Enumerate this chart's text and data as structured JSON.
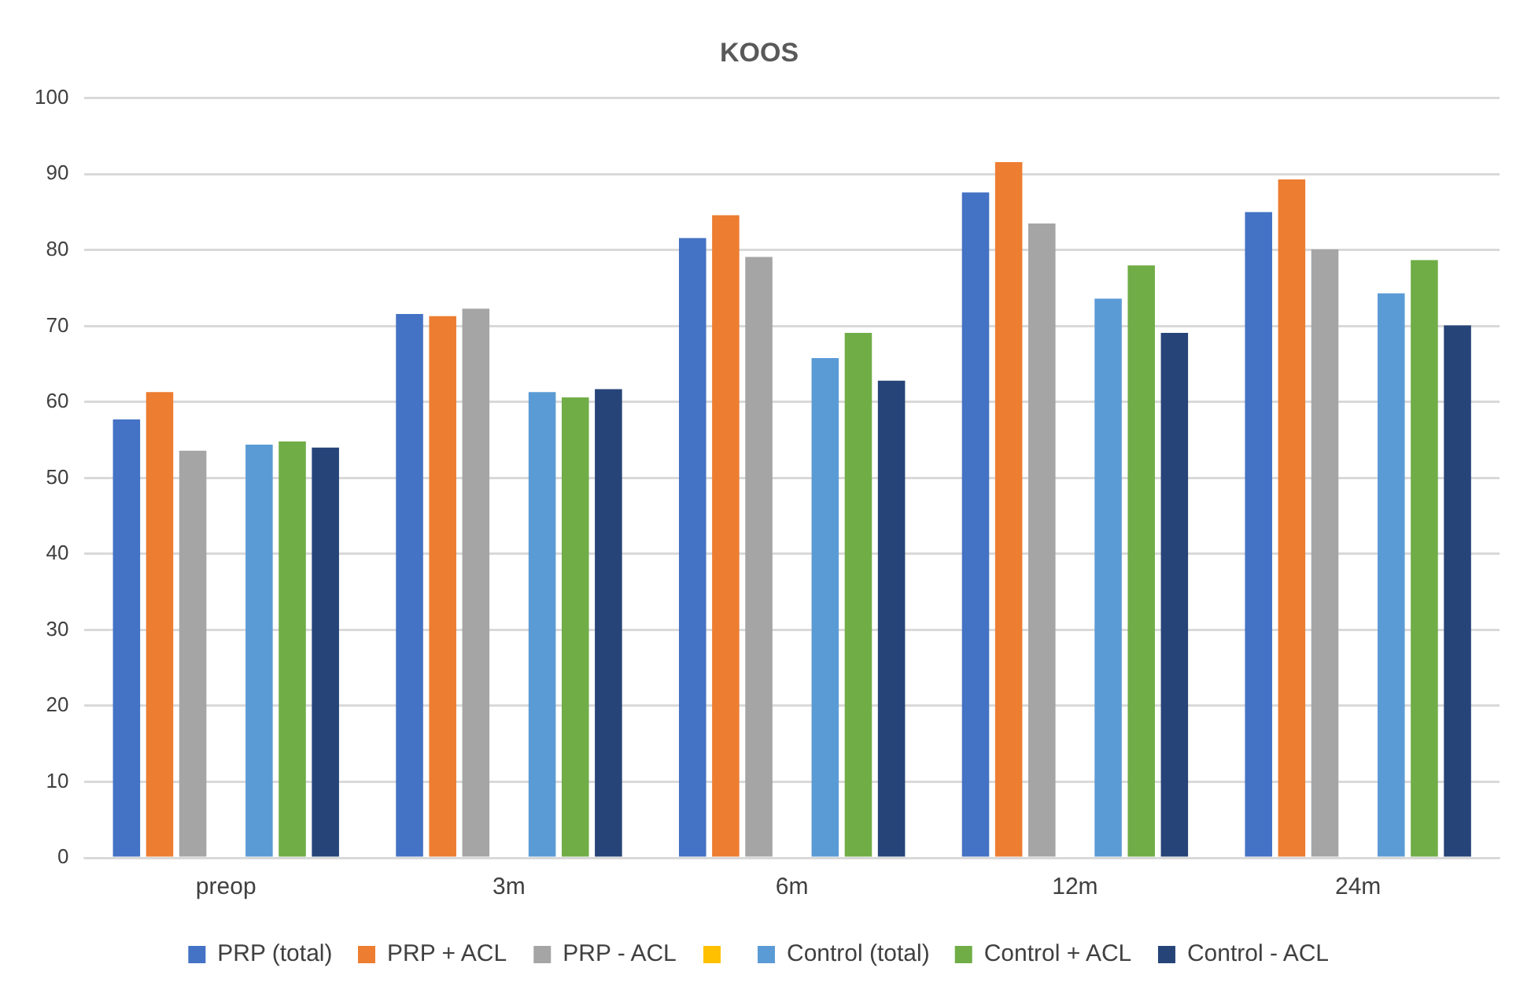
{
  "chart_data": {
    "type": "bar",
    "title": "KOOS",
    "categories": [
      "preop",
      "3m",
      "6m",
      "12m",
      "24m"
    ],
    "series": [
      {
        "name": "PRP (total)",
        "color": "#4472c4",
        "values": [
          57.7,
          71.6,
          81.6,
          87.6,
          85.0
        ]
      },
      {
        "name": "PRP + ACL",
        "color": "#ed7d31",
        "values": [
          61.3,
          71.3,
          84.6,
          91.6,
          89.3
        ]
      },
      {
        "name": "PRP - ACL",
        "color": "#a5a5a5",
        "values": [
          53.6,
          72.3,
          79.1,
          83.5,
          80.1
        ]
      },
      {
        "color": "#ffc000",
        "values": [
          null,
          null,
          null,
          null,
          null
        ]
      },
      {
        "name": "Control (total)",
        "color": "#5b9bd5",
        "values": [
          54.4,
          61.3,
          65.8,
          73.6,
          74.3
        ]
      },
      {
        "name": "Control + ACL",
        "color": "#70ad47",
        "values": [
          54.8,
          60.6,
          69.1,
          78.0,
          78.7
        ]
      },
      {
        "name": "Control - ACL",
        "color": "#264478",
        "values": [
          54.0,
          61.7,
          62.8,
          69.1,
          70.1
        ]
      }
    ],
    "ylim": [
      0,
      100
    ],
    "yticks": [
      0,
      10,
      20,
      30,
      40,
      50,
      60,
      70,
      80,
      90,
      100
    ],
    "grid": "y",
    "legend": "bottom"
  }
}
